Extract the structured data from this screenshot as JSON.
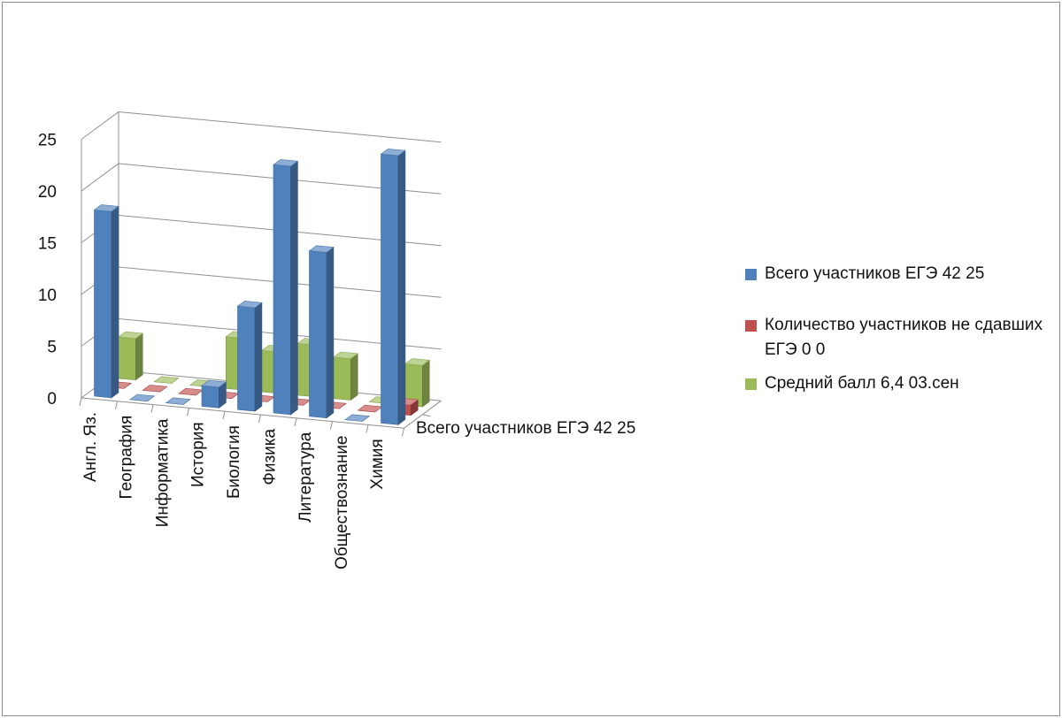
{
  "chart_data": {
    "type": "bar",
    "subtype": "3d-column",
    "categories": [
      "Англ. Яз.",
      "География",
      "Информатика",
      "История",
      "Биология",
      "Физика",
      "Литература",
      "Обществознание",
      "Химия"
    ],
    "series": [
      {
        "name": "Всего  участников  ЕГЭ 42 25",
        "color": "#4f81bd",
        "values": [
          18,
          0,
          0,
          2,
          10,
          24,
          16,
          0,
          26
        ]
      },
      {
        "name": "Количество  участников не сдавших ЕГЭ 0 0",
        "color": "#c0504d",
        "values": [
          0,
          0,
          0,
          0,
          0,
          0,
          0,
          0,
          1
        ]
      },
      {
        "name": "Средний балл 6,4 03.сен",
        "color": "#9bbb59",
        "values": [
          4,
          0,
          0,
          5,
          4,
          5,
          4,
          0,
          4
        ]
      }
    ],
    "depth_label": "Всего  участников  ЕГЭ 42 25",
    "y_ticks": [
      "0",
      "5",
      "10",
      "15",
      "20",
      "25"
    ],
    "ylim": [
      0,
      25
    ],
    "grid": true,
    "legend_position": "right"
  }
}
